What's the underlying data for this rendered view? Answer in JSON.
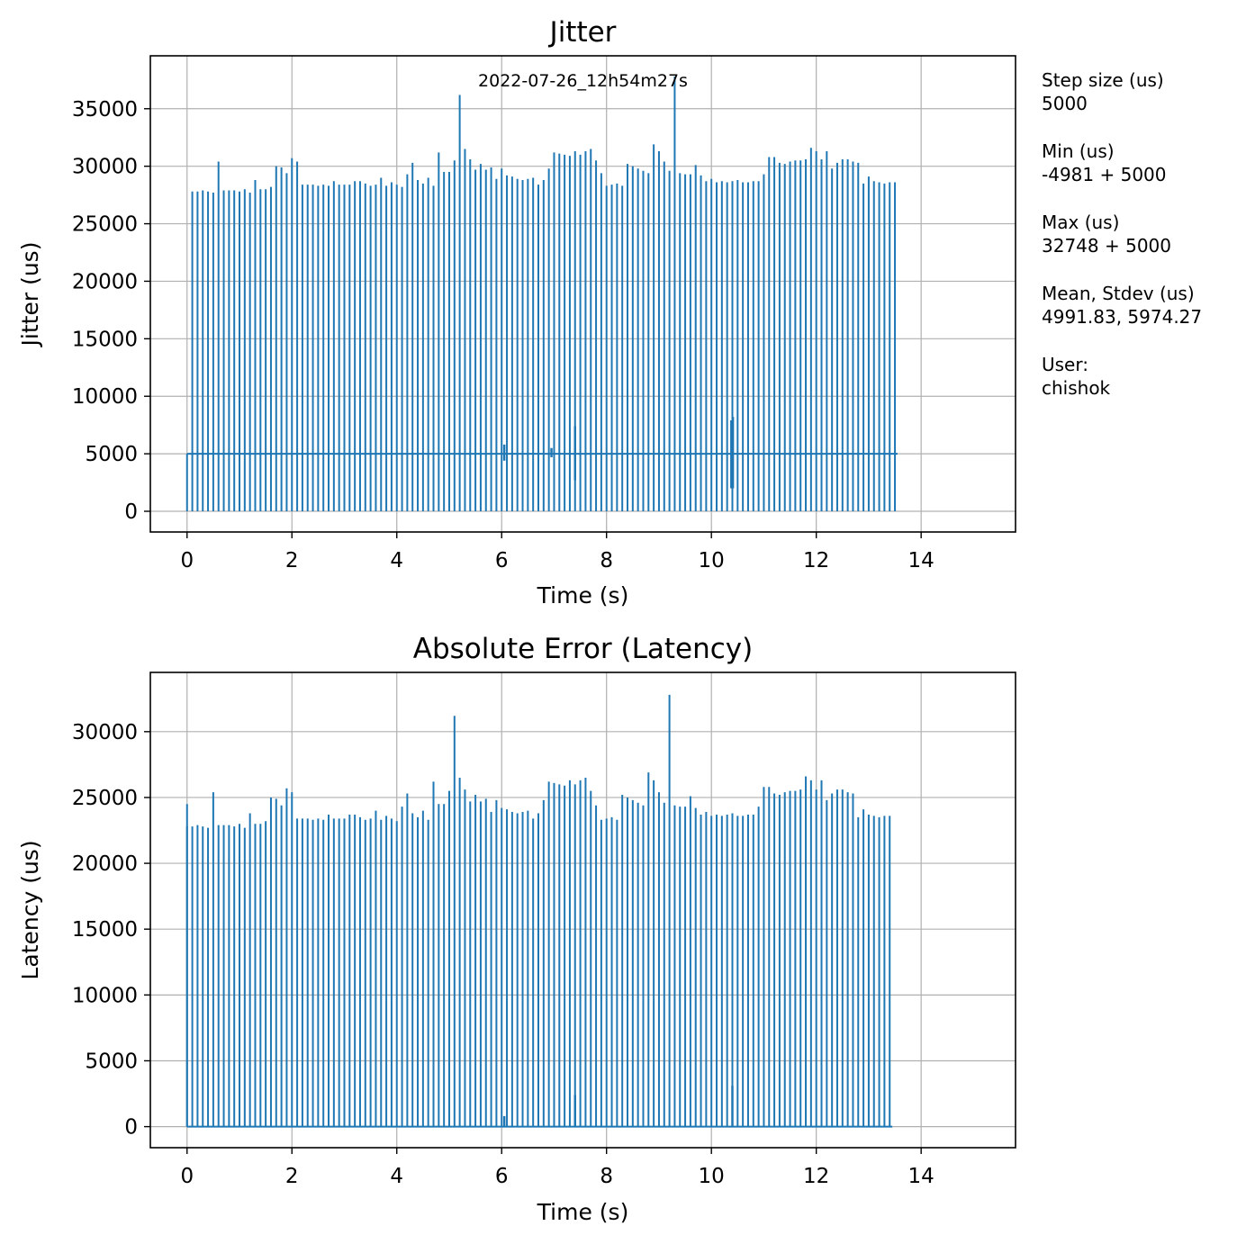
{
  "series_color": "#1f77b4",
  "grid": true,
  "chart_data": [
    {
      "type": "line",
      "title": "Jitter",
      "xlabel": "Time (s)",
      "ylabel": "Jitter (us)",
      "annotation": "2022-07-26_12h54m27s",
      "xlim": [
        -0.7,
        15.8
      ],
      "ylim": [
        -1800,
        39600
      ],
      "xticks": [
        0,
        2,
        4,
        6,
        8,
        10,
        12,
        14
      ],
      "yticks": [
        0,
        5000,
        10000,
        15000,
        20000,
        25000,
        30000,
        35000
      ],
      "baseline": 5000,
      "period_s": 0.1,
      "first_peak_s": 0.1,
      "peaks": [
        27800,
        27800,
        27900,
        27800,
        27700,
        30400,
        27900,
        27900,
        27900,
        27800,
        28000,
        27700,
        28800,
        28000,
        28000,
        28200,
        30000,
        29900,
        29400,
        30700,
        30400,
        28400,
        28400,
        28400,
        28300,
        28400,
        28300,
        28700,
        28400,
        28400,
        28400,
        28700,
        28700,
        28500,
        28300,
        28400,
        29000,
        28300,
        28600,
        28400,
        28200,
        29300,
        30300,
        28800,
        28500,
        29000,
        28300,
        31200,
        29500,
        29500,
        30500,
        36200,
        31500,
        30600,
        29700,
        30200,
        29700,
        29900,
        28900,
        29800,
        29200,
        29100,
        28900,
        28800,
        28900,
        29000,
        28400,
        28800,
        29800,
        31200,
        31100,
        31000,
        30900,
        31300,
        31000,
        31300,
        31500,
        30500,
        29400,
        28300,
        28400,
        28500,
        28300,
        30200,
        30000,
        29800,
        29600,
        29400,
        31900,
        31300,
        30400,
        29600,
        37800,
        29400,
        29300,
        29300,
        30100,
        29200,
        28700,
        28900,
        28600,
        28700,
        28600,
        28700,
        28800,
        28600,
        28600,
        28700,
        28700,
        29300,
        30800,
        30800,
        30300,
        30200,
        30400,
        30500,
        30500,
        30600,
        31600,
        31300,
        30600,
        31300,
        29800,
        30300,
        30600,
        30600,
        30400,
        30300,
        28500,
        29100,
        28700,
        28600,
        28500,
        28600,
        28600
      ],
      "dips": [
        {
          "x": 6.05,
          "min": 4400,
          "max": 5800
        },
        {
          "x": 6.95,
          "min": 4700,
          "max": 5500
        },
        {
          "x": 7.4,
          "min": 2700,
          "max": 7400
        },
        {
          "x": 10.38,
          "min": 2000,
          "max": 7900
        },
        {
          "x": 10.41,
          "min": 2000,
          "max": 8200
        }
      ]
    },
    {
      "type": "line",
      "title": "Absolute Error (Latency)",
      "xlabel": "Time (s)",
      "ylabel": "Latency (us)",
      "xlim": [
        -0.7,
        15.8
      ],
      "ylim": [
        -1600,
        34500
      ],
      "xticks": [
        0,
        2,
        4,
        6,
        8,
        10,
        12,
        14
      ],
      "yticks": [
        0,
        5000,
        10000,
        15000,
        20000,
        25000,
        30000
      ],
      "baseline": 0,
      "period_s": 0.1,
      "first_peak_s": 0.0,
      "first_peak_value": 24500,
      "peaks": [
        22800,
        22800,
        22900,
        22800,
        22700,
        25400,
        22900,
        22900,
        22900,
        22800,
        23000,
        22700,
        23800,
        23000,
        23000,
        23200,
        25000,
        24900,
        24400,
        25700,
        25400,
        23400,
        23400,
        23400,
        23300,
        23400,
        23300,
        23700,
        23400,
        23400,
        23400,
        23700,
        23700,
        23500,
        23300,
        23400,
        24000,
        23300,
        23600,
        23400,
        23200,
        24300,
        25300,
        23800,
        23500,
        24000,
        23300,
        26200,
        24500,
        24500,
        25500,
        31200,
        26500,
        25600,
        24700,
        25200,
        24700,
        24900,
        23900,
        24800,
        24200,
        24100,
        23900,
        23800,
        23900,
        24000,
        23400,
        23800,
        24800,
        26200,
        26100,
        26000,
        25900,
        26300,
        26000,
        26300,
        26500,
        25500,
        24400,
        23300,
        23400,
        23500,
        23300,
        25200,
        25000,
        24800,
        24600,
        24400,
        26900,
        26300,
        25400,
        24600,
        32800,
        24400,
        24300,
        24300,
        25100,
        24200,
        23700,
        23900,
        23600,
        23700,
        23600,
        23700,
        23800,
        23600,
        23600,
        23700,
        23700,
        24300,
        25800,
        25800,
        25300,
        25200,
        25400,
        25500,
        25500,
        25600,
        26600,
        26300,
        25600,
        26300,
        24800,
        25300,
        25600,
        25600,
        25400,
        25300,
        23500,
        24100,
        23700,
        23600,
        23500,
        23600,
        23600
      ],
      "dips": [
        {
          "x": 6.05,
          "min": 0,
          "max": 800
        },
        {
          "x": 7.4,
          "min": 0,
          "max": 2400
        },
        {
          "x": 10.4,
          "min": 0,
          "max": 3100
        }
      ]
    }
  ],
  "side_panel": {
    "step_size_label": "Step size (us)",
    "step_size_value": "5000",
    "min_label": "Min (us)",
    "min_value": "-4981 + 5000",
    "max_label": "Max (us)",
    "max_value": "32748 + 5000",
    "mean_label": "Mean, Stdev (us)",
    "mean_value": "4991.83, 5974.27",
    "user_label": "User:",
    "user_value": "chishok"
  }
}
